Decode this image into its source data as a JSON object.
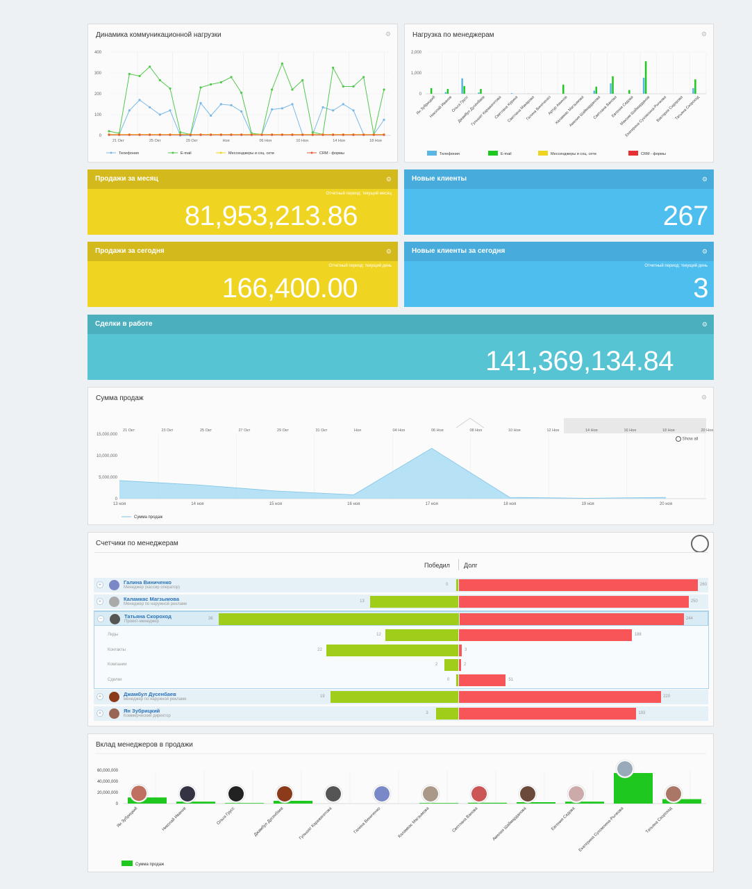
{
  "comm_panel": {
    "title": "Динамика коммуникационной нагрузки",
    "chart_data": {
      "type": "line",
      "title": "Динамика коммуникационной нагрузки",
      "ylim": [
        0,
        400
      ],
      "yticks": [
        "400",
        "300",
        "200",
        "100",
        "0"
      ],
      "xticks": [
        "21 Окт",
        "25 Окт",
        "29 Окт",
        "Ноя",
        "06 Ноя",
        "10 Ноя",
        "14 Ноя",
        "18 Ноя"
      ],
      "series": [
        {
          "name": "Телефония",
          "color": "#7ab8e8",
          "values": [
            5,
            5,
            120,
            170,
            135,
            100,
            120,
            0,
            0,
            155,
            95,
            150,
            145,
            115,
            5,
            5,
            125,
            130,
            150,
            5,
            5,
            135,
            120,
            150,
            120,
            5,
            5,
            75
          ]
        },
        {
          "name": "E-mail",
          "color": "#52c84c",
          "values": [
            20,
            10,
            295,
            285,
            330,
            265,
            225,
            15,
            5,
            230,
            245,
            255,
            280,
            205,
            10,
            5,
            220,
            345,
            220,
            265,
            15,
            5,
            325,
            235,
            235,
            280,
            5,
            220
          ]
        },
        {
          "name": "Мессенджеры и соц. сети",
          "color": "#f0d422",
          "values": [
            5,
            5,
            5,
            5,
            5,
            5,
            5,
            5,
            5,
            5,
            5,
            5,
            5,
            5,
            5,
            5,
            5,
            5,
            5,
            5,
            5,
            5,
            5,
            5,
            5,
            5,
            5,
            5
          ]
        },
        {
          "name": "CRM - формы",
          "color": "#e45a3c",
          "values": [
            3,
            3,
            3,
            3,
            3,
            3,
            3,
            3,
            3,
            3,
            3,
            3,
            3,
            3,
            3,
            3,
            3,
            3,
            3,
            3,
            3,
            3,
            3,
            3,
            3,
            3,
            3,
            3
          ]
        }
      ]
    }
  },
  "mgr_load": {
    "title": "Нагрузка по менеджерам",
    "chart_data": {
      "type": "bar",
      "ylim": [
        0,
        2000
      ],
      "yticks": [
        "2,000",
        "1,000",
        "0"
      ],
      "categories": [
        "Ян Зубрицкий",
        "Николай Иванов",
        "Ольга Грусс",
        "Джамбул Дусенбаев",
        "Гульшат Каражигитова",
        "Светлана Курина",
        "Светлана Макарова",
        "Галина Виниченко",
        "Артур Аминов",
        "Каламкас Магзымова",
        "Амелия Шаймарданова",
        "Светлана Ванова",
        "Евгения Седова",
        "Максим Шаймарданов",
        "Екатерина Сухомлина-Рычкова",
        "Виктория Сидорова",
        "Татьяна Скороход"
      ],
      "series": [
        {
          "name": "Телефония",
          "color": "#5ab6e4",
          "values": [
            0,
            80,
            740,
            60,
            0,
            30,
            10,
            0,
            0,
            0,
            150,
            500,
            0,
            770,
            0,
            0,
            270
          ]
        },
        {
          "name": "E-mail",
          "color": "#1ec81e",
          "values": [
            270,
            230,
            370,
            230,
            0,
            0,
            0,
            0,
            440,
            0,
            340,
            840,
            180,
            1560,
            0,
            0,
            690
          ]
        },
        {
          "name": "Мессенджеры и соц. сети",
          "color": "#f0d422",
          "values": [
            0,
            0,
            0,
            0,
            0,
            0,
            0,
            0,
            0,
            0,
            0,
            0,
            0,
            0,
            0,
            0,
            0
          ]
        },
        {
          "name": "CRM - формы",
          "color": "#e63232",
          "values": [
            0,
            0,
            0,
            0,
            0,
            0,
            0,
            0,
            0,
            0,
            0,
            0,
            0,
            0,
            0,
            0,
            0
          ]
        }
      ]
    }
  },
  "k1": {
    "title": "Продажи за месяц",
    "period": "Отчетный период: текущий месяц",
    "value": "81,953,213.86"
  },
  "k2": {
    "title": "Новые клиенты",
    "value": "267"
  },
  "k3": {
    "title": "Продажи за сегодня",
    "period": "Отчетный период: текущий день",
    "value": "166,400.00"
  },
  "k4": {
    "title": "Новые клиенты за сегодня",
    "period": "Отчетный период: текущий день",
    "value": "3"
  },
  "k5": {
    "title": "Сделки в работе",
    "value": "141,369,134.84"
  },
  "sales": {
    "title": "Сумма продаж",
    "show_all": "Show all",
    "nav_ticks": [
      "21 Окт",
      "23 Окт",
      "25 Окт",
      "27 Окт",
      "29 Окт",
      "31 Окт",
      "Ноя",
      "04 Ноя",
      "06 Ноя",
      "08 Ноя",
      "10 Ноя",
      "12 Ноя",
      "14 Ноя",
      "16 Ноя",
      "18 Ноя",
      "20 Ноя"
    ],
    "chart_data": {
      "type": "area",
      "ylim": [
        0,
        15000000
      ],
      "yticks": [
        "15,000,000",
        "10,000,000",
        "5,000,000",
        "0"
      ],
      "x": [
        "13 ноя",
        "14 ноя",
        "15 ноя",
        "16 ноя",
        "17 ноя",
        "18 ноя",
        "19 ноя",
        "20 ноя"
      ],
      "series": [
        {
          "name": "Сумма продаж",
          "color": "#aadcf2",
          "values": [
            4200000,
            3200000,
            1800000,
            900000,
            11700000,
            300000,
            100000,
            300000
          ]
        }
      ]
    }
  },
  "counters": {
    "title": "Счетчики по менеджерам",
    "won": "Победил",
    "debt": "Долг",
    "rows": [
      {
        "name": "Галина Виниченко",
        "role": "Менеджер (кассир оператор)",
        "won": 0,
        "debt": 260,
        "won_label": "0",
        "debt_label": "260",
        "av": "#7a88c8"
      },
      {
        "name": "Каламкас Магзымова",
        "role": "Менеджер по наружной рекламе",
        "won": 13,
        "debt": 250,
        "won_label": "13",
        "debt_label": "250",
        "av": "#aaaaaa"
      },
      {
        "name": "Татьяна Скороход",
        "role": "Проект-менеджер",
        "won": 36,
        "debt": 244,
        "won_label": "36",
        "debt_label": "244",
        "av": "#555"
      }
    ],
    "sub": [
      {
        "label": "Лиды",
        "won": 12,
        "debt": 188,
        "won_label": "12",
        "debt_label": "188"
      },
      {
        "label": "Контакты",
        "won": 22,
        "debt": 3,
        "won_label": "22",
        "debt_label": "3"
      },
      {
        "label": "Компании",
        "won": 2,
        "debt": 2,
        "won_label": "2",
        "debt_label": "2"
      },
      {
        "label": "Сделки",
        "won": 0,
        "debt": 51,
        "won_label": "0",
        "debt_label": "51"
      }
    ],
    "rows2": [
      {
        "name": "Джамбул Дусенбаев",
        "role": "менеджер по наружной рекламе",
        "won": 19,
        "debt": 220,
        "won_label": "19",
        "debt_label": "220",
        "av": "#8b3a1a"
      },
      {
        "name": "Ян Зубрицкий",
        "role": "Коммерческий директор",
        "won": 3,
        "debt": 193,
        "won_label": "3",
        "debt_label": "193",
        "av": "#996655"
      }
    ]
  },
  "contrib": {
    "title": "Вклад менеджеров в продажи",
    "legend": "Сумма продаж",
    "chart_data": {
      "type": "bar",
      "ylim": [
        0,
        60000000
      ],
      "yticks": [
        "60,000,000",
        "40,000,000",
        "20,000,000",
        "0"
      ],
      "categories": [
        "Ян Зубрицкий",
        "Николай Иванов",
        "Ольга Грусс",
        "Джамбул Дусенбаев",
        "Гульшат Каражигитова",
        "Галина Виниченко",
        "Каламкас Магзымова",
        "Светлана Ванова",
        "Амелия Шаймарданова",
        "Евгения Седова",
        "Екатерина Сухомлина-Рычкова",
        "Татьяна Скороход"
      ],
      "series": [
        {
          "name": "Сумма продаж",
          "color": "#1ec81e",
          "values": [
            11000000,
            3500000,
            1000000,
            5000000,
            0,
            0,
            1000000,
            1500000,
            2500000,
            3500000,
            55000000,
            8000000
          ]
        }
      ]
    }
  }
}
